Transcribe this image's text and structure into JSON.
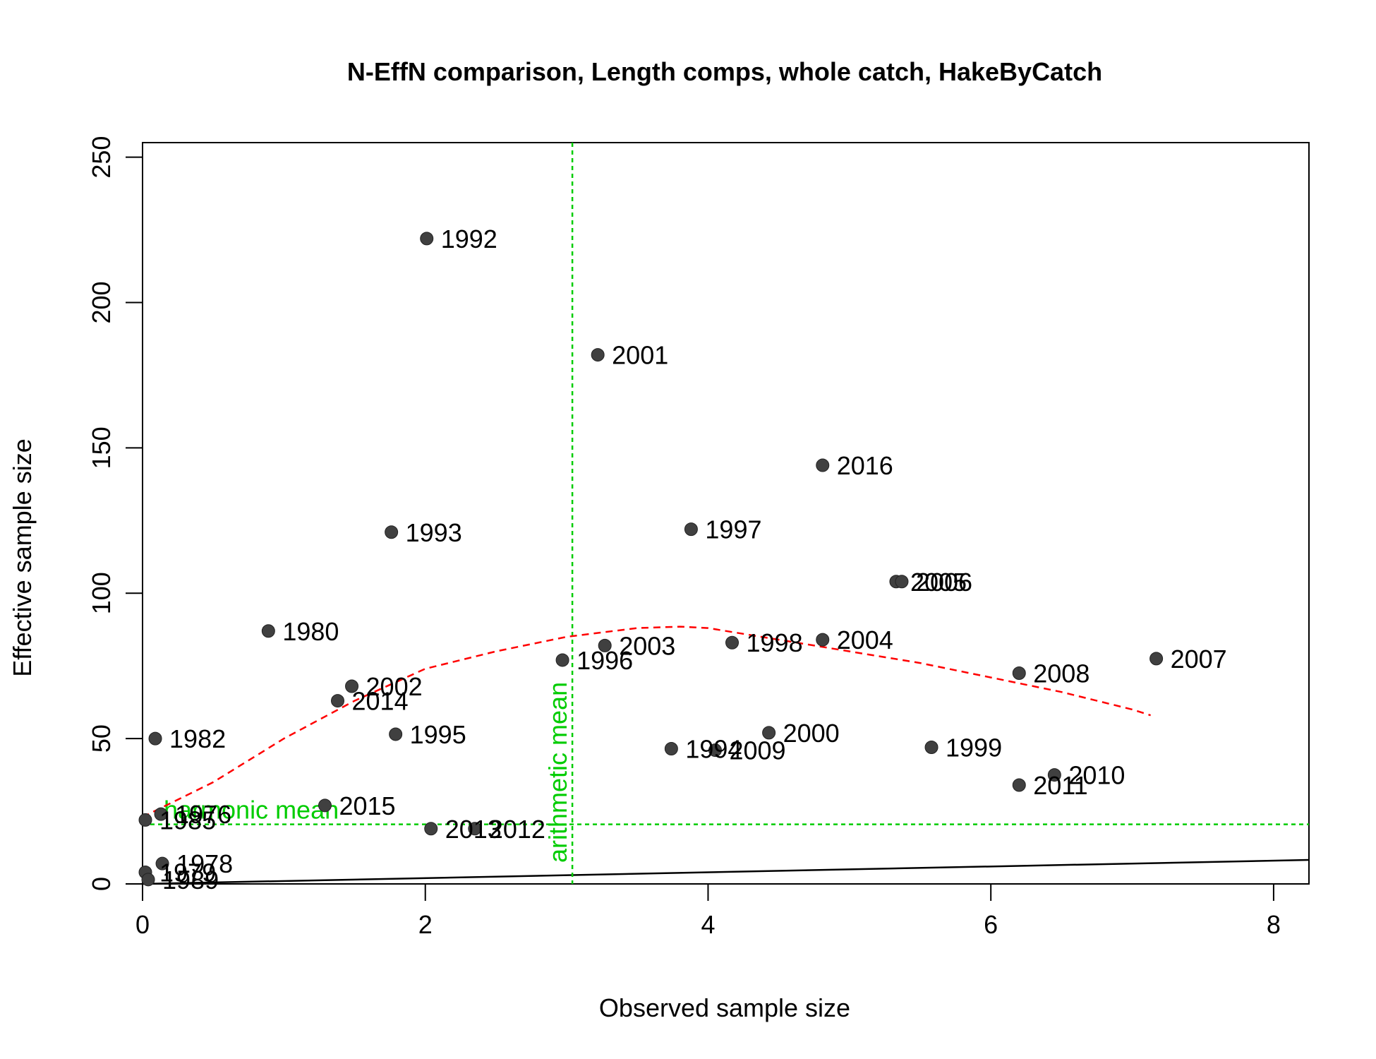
{
  "chart_data": {
    "type": "scatter",
    "title": "N-EffN comparison, Length comps, whole catch, HakeByCatch",
    "xlabel": "Observed sample size",
    "ylabel": "Effective sample size",
    "xlim": [
      0,
      8.25
    ],
    "ylim": [
      0,
      255
    ],
    "xticks": [
      0,
      2,
      4,
      6,
      8
    ],
    "yticks": [
      0,
      50,
      100,
      150,
      200,
      250
    ],
    "grid": false,
    "legend": "none",
    "points": [
      {
        "label": "1992",
        "x": 2.01,
        "y": 222
      },
      {
        "label": "2001",
        "x": 3.22,
        "y": 182
      },
      {
        "label": "2016",
        "x": 4.81,
        "y": 144
      },
      {
        "label": "1993",
        "x": 1.76,
        "y": 121
      },
      {
        "label": "1997",
        "x": 3.88,
        "y": 122
      },
      {
        "label": "2005",
        "x": 5.33,
        "y": 104
      },
      {
        "label": "2006",
        "x": 5.37,
        "y": 104
      },
      {
        "label": "1980",
        "x": 0.89,
        "y": 87
      },
      {
        "label": "2004",
        "x": 4.81,
        "y": 84
      },
      {
        "label": "1998",
        "x": 4.17,
        "y": 83
      },
      {
        "label": "2003",
        "x": 3.27,
        "y": 82
      },
      {
        "label": "2007",
        "x": 7.17,
        "y": 77.5
      },
      {
        "label": "1996",
        "x": 2.97,
        "y": 77
      },
      {
        "label": "2008",
        "x": 6.2,
        "y": 72.5
      },
      {
        "label": "2002",
        "x": 1.48,
        "y": 68
      },
      {
        "label": "2014",
        "x": 1.38,
        "y": 63
      },
      {
        "label": "1995",
        "x": 1.79,
        "y": 51.5
      },
      {
        "label": "2000",
        "x": 4.43,
        "y": 52
      },
      {
        "label": "1982",
        "x": 0.09,
        "y": 50
      },
      {
        "label": "1999",
        "x": 5.58,
        "y": 47
      },
      {
        "label": "1994",
        "x": 3.74,
        "y": 46.5
      },
      {
        "label": "2009",
        "x": 4.05,
        "y": 46
      },
      {
        "label": "2010",
        "x": 6.45,
        "y": 37.5
      },
      {
        "label": "2011",
        "x": 6.2,
        "y": 34
      },
      {
        "label": "2015",
        "x": 1.29,
        "y": 27
      },
      {
        "label": "1976",
        "x": 0.13,
        "y": 24
      },
      {
        "label": "1985",
        "x": 0.02,
        "y": 22
      },
      {
        "label": "2013",
        "x": 2.04,
        "y": 19
      },
      {
        "label": "2012",
        "x": 2.35,
        "y": 19
      },
      {
        "label": "1978",
        "x": 0.14,
        "y": 7
      },
      {
        "label": "1979",
        "x": 0.02,
        "y": 4
      },
      {
        "label": "1989",
        "x": 0.04,
        "y": 1.5
      }
    ],
    "reference_lines": {
      "identity": {
        "points": [
          [
            0,
            0
          ],
          [
            8.25,
            8.25
          ]
        ],
        "color": "#000000"
      },
      "arithmetic_mean": {
        "label": "arithmetic mean",
        "x": 3.04,
        "color": "#00cc00"
      },
      "harmonic_mean": {
        "label": "harmonic mean",
        "y": 20.5,
        "color": "#00cc00"
      }
    },
    "loess": {
      "color": "#ff0000",
      "x": [
        0,
        0.5,
        1,
        1.5,
        2,
        2.5,
        3,
        3.5,
        3.8,
        4,
        4.5,
        5,
        5.5,
        6,
        6.5,
        7,
        7.13
      ],
      "y": [
        23,
        35,
        50,
        63,
        74,
        80,
        85,
        88,
        88.5,
        88,
        84,
        80,
        76,
        71,
        66,
        60,
        58
      ]
    },
    "point_color": "#404040"
  }
}
